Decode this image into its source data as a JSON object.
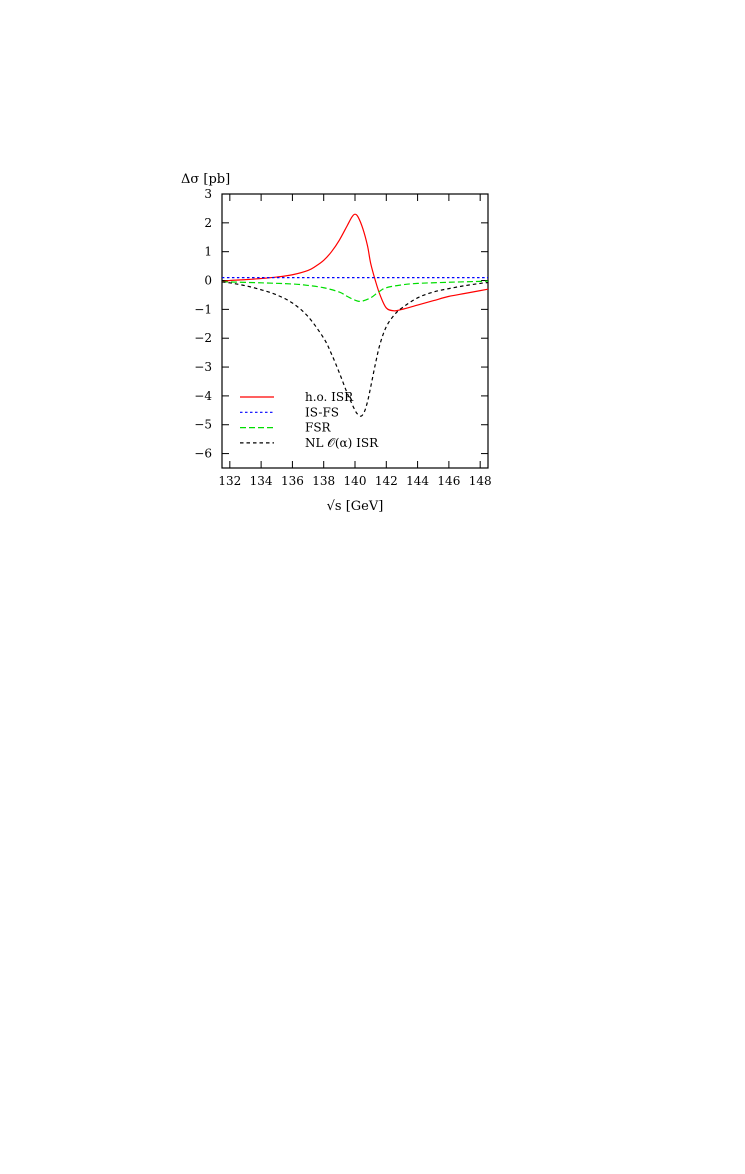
{
  "chart_data": {
    "type": "line",
    "title": "",
    "xlabel": "√s [GeV]",
    "ylabel": "Δσ [pb]",
    "xlim": [
      131.5,
      148.5
    ],
    "ylim": [
      -6.5,
      3
    ],
    "x_ticks": [
      132,
      134,
      136,
      138,
      140,
      142,
      144,
      146,
      148
    ],
    "y_ticks": [
      3,
      2,
      1,
      0,
      -1,
      -2,
      -3,
      -4,
      -5,
      -6
    ],
    "x_tick_labels": [
      "132",
      "134",
      "136",
      "138",
      "140",
      "142",
      "144",
      "146",
      "148"
    ],
    "y_tick_labels": [
      "3",
      "2",
      "1",
      "0",
      "−1",
      "−2",
      "−3",
      "−4",
      "−5",
      "−6"
    ],
    "grid": false,
    "legend_position": "bottom-left",
    "series": [
      {
        "name": "h.o. ISR",
        "color": "#ff0000",
        "dash": "solid",
        "x": [
          131.5,
          132,
          133,
          134,
          135,
          136,
          137,
          137.5,
          138,
          138.5,
          139,
          139.5,
          139.8,
          140,
          140.2,
          140.5,
          140.8,
          141,
          141.3,
          141.6,
          142,
          142.5,
          143,
          144,
          145,
          146,
          147,
          148,
          148.5
        ],
        "y": [
          -0.05,
          0,
          0.03,
          0.07,
          0.12,
          0.2,
          0.35,
          0.5,
          0.7,
          1.0,
          1.4,
          1.9,
          2.2,
          2.3,
          2.2,
          1.8,
          1.2,
          0.6,
          0.0,
          -0.5,
          -0.95,
          -1.05,
          -1.0,
          -0.85,
          -0.7,
          -0.55,
          -0.45,
          -0.35,
          -0.3
        ]
      },
      {
        "name": "IS-FS",
        "color": "#0000ff",
        "dash": "dotted",
        "x": [
          131.5,
          132,
          134,
          136,
          138,
          140,
          142,
          144,
          146,
          148,
          148.5
        ],
        "y": [
          0.1,
          0.1,
          0.1,
          0.1,
          0.1,
          0.1,
          0.1,
          0.1,
          0.1,
          0.1,
          0.1
        ]
      },
      {
        "name": "FSR",
        "color": "#00dd00",
        "dash": "dashed",
        "x": [
          131.5,
          132,
          134,
          136,
          137,
          138,
          139,
          139.5,
          140,
          140.4,
          141,
          141.5,
          142,
          143,
          144,
          146,
          148,
          148.5
        ],
        "y": [
          -0.05,
          -0.05,
          -0.08,
          -0.12,
          -0.17,
          -0.25,
          -0.4,
          -0.55,
          -0.68,
          -0.72,
          -0.6,
          -0.4,
          -0.25,
          -0.15,
          -0.1,
          -0.06,
          -0.03,
          -0.02
        ]
      },
      {
        "name": "NL 𝒪(α) ISR",
        "color": "#000000",
        "dash": "dash-short",
        "x": [
          131.5,
          132,
          133,
          134,
          135,
          136,
          137,
          138,
          138.5,
          139,
          139.5,
          140,
          140.2,
          140.4,
          140.6,
          140.8,
          141,
          141.3,
          141.6,
          142,
          142.5,
          143,
          144,
          145,
          146,
          147,
          148,
          148.5
        ],
        "y": [
          -0.05,
          -0.08,
          -0.18,
          -0.32,
          -0.5,
          -0.78,
          -1.25,
          -2.0,
          -2.55,
          -3.2,
          -3.9,
          -4.5,
          -4.65,
          -4.7,
          -4.55,
          -4.2,
          -3.7,
          -2.9,
          -2.2,
          -1.6,
          -1.2,
          -0.95,
          -0.6,
          -0.4,
          -0.28,
          -0.18,
          -0.1,
          -0.07
        ]
      }
    ]
  }
}
